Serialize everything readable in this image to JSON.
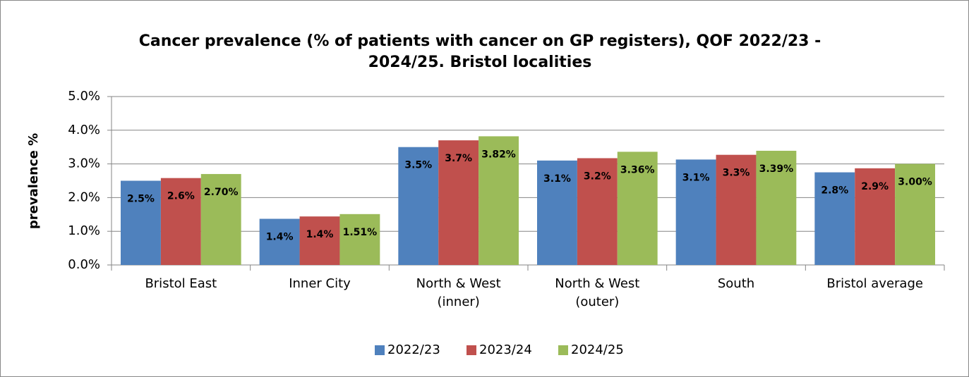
{
  "chart_data": {
    "type": "bar",
    "title": "Cancer prevalence (% of patients with cancer on GP registers), QOF 2022/23 - 2024/25. Bristol localities",
    "y_label": "prevalence %",
    "categories": [
      "Bristol East",
      "Inner City",
      "North & West (inner)",
      "North & West (outer)",
      "South",
      "Bristol average"
    ],
    "series": [
      {
        "name": "2022/23",
        "color": "#4f81bd",
        "values": [
          2.5,
          1.37,
          3.5,
          3.1,
          3.13,
          2.75
        ],
        "value_labels": [
          "2.5%",
          "1.4%",
          "3.5%",
          "3.1%",
          "3.1%",
          "2.8%"
        ]
      },
      {
        "name": "2023/24",
        "color": "#c0504d",
        "values": [
          2.58,
          1.44,
          3.7,
          3.17,
          3.27,
          2.87
        ],
        "value_labels": [
          "2.6%",
          "1.4%",
          "3.7%",
          "3.2%",
          "3.3%",
          "2.9%"
        ]
      },
      {
        "name": "2024/25",
        "color": "#9bbb59",
        "values": [
          2.7,
          1.51,
          3.82,
          3.36,
          3.39,
          3.0
        ],
        "value_labels": [
          "2.70%",
          "1.51%",
          "3.82%",
          "3.36%",
          "3.39%",
          "3.00%"
        ]
      }
    ],
    "ylim": [
      0,
      5
    ],
    "yticks": [
      {
        "value": 0,
        "label": "0.0%"
      },
      {
        "value": 1,
        "label": "1.0%"
      },
      {
        "value": 2,
        "label": "2.0%"
      },
      {
        "value": 3,
        "label": "3.0%"
      },
      {
        "value": 4,
        "label": "4.0%"
      },
      {
        "value": 5,
        "label": "5.0%"
      }
    ],
    "grid": true,
    "legend": "bottom"
  }
}
